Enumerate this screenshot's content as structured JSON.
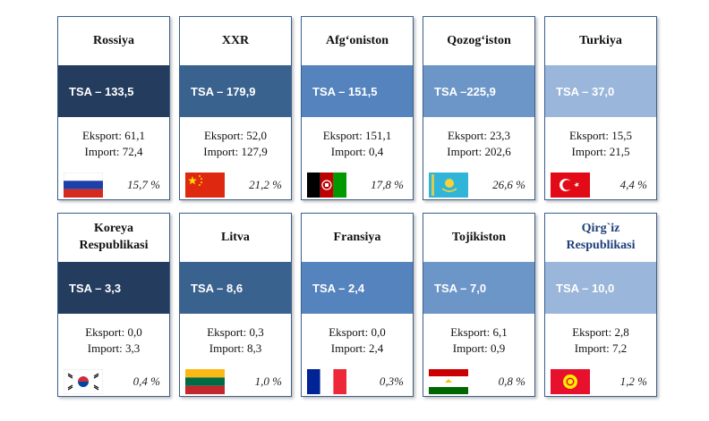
{
  "cards": [
    {
      "country": "Rossiya",
      "tsa": "TSA – 133,5",
      "eksport": "Eksport: 61,1",
      "import": "Import:  72,4",
      "share": "15,7 %",
      "flag": "russia-flag"
    },
    {
      "country": "XXR",
      "tsa": "TSA – 179,9",
      "eksport": "Eksport: 52,0",
      "import": "Import:  127,9",
      "share": "21,2 %",
      "flag": "china-flag"
    },
    {
      "country": "Afg‘oniston",
      "tsa": "TSA – 151,5",
      "eksport": "Eksport: 151,1",
      "import": "Import: 0,4",
      "share": "17,8 %",
      "flag": "afghanistan-flag"
    },
    {
      "country": "Qozog‘iston",
      "tsa": "TSA –225,9",
      "eksport": "Eksport: 23,3",
      "import": "Import:  202,6",
      "share": "26,6 %",
      "flag": "kazakhstan-flag"
    },
    {
      "country": "Turkiya",
      "tsa": "TSA – 37,0",
      "eksport": "Eksport: 15,5",
      "import": "Import:  21,5",
      "share": "4,4 %",
      "flag": "turkey-flag"
    },
    {
      "country": "Koreya Respublikasi",
      "tsa": "TSA – 3,3",
      "eksport": "Eksport: 0,0",
      "import": "Import: 3,3",
      "share": "0,4 %",
      "flag": "south-korea-flag"
    },
    {
      "country": "Litva",
      "tsa": "TSA – 8,6",
      "eksport": "Eksport: 0,3",
      "import": "Import: 8,3",
      "share": "1,0 %",
      "flag": "lithuania-flag"
    },
    {
      "country": "Fransiya",
      "tsa": "TSA – 2,4",
      "eksport": "Eksport: 0,0",
      "import": "Import: 2,4",
      "share": "0,3%",
      "flag": "france-flag"
    },
    {
      "country": "Tojikiston",
      "tsa": "TSA – 7,0",
      "eksport": "Eksport: 6,1",
      "import": "Import: 0,9",
      "share": "0,8 %",
      "flag": "tajikistan-flag"
    },
    {
      "country": "Qirg`iz Respublikasi",
      "tsa": "TSA – 10,0",
      "eksport": "Eksport: 2,8",
      "import": "Import: 7,2",
      "share": "1,2 %",
      "flag": "kyrgyzstan-flag"
    }
  ],
  "colors": {
    "column_1": "#243c5e",
    "column_2": "#3a628f",
    "column_3": "#5483bd",
    "column_4": "#6d96c8",
    "column_5": "#9ab6da",
    "border": "#3b5f8c",
    "last_title": "#1f3f7a"
  }
}
